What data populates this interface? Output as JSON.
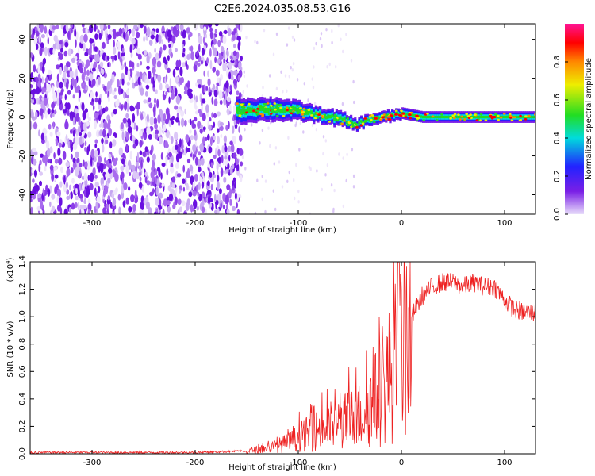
{
  "title": "C2E6.2024.035.08.53.G16",
  "chart_data": [
    {
      "type": "heatmap",
      "xlabel": "Height of straight line (km)",
      "ylabel": "Frequency (Hz)",
      "xlim": [
        -360,
        130
      ],
      "ylim": [
        -50,
        48
      ],
      "x_ticks": [
        -300,
        -200,
        -100,
        0,
        100
      ],
      "y_ticks": [
        -40,
        -20,
        0,
        20,
        40
      ],
      "colorbar": {
        "label": "Normalized spectral amplitude",
        "range": [
          0,
          1
        ],
        "ticks": [
          "0.0",
          "0.2",
          "0.4",
          "0.6",
          "0.8"
        ],
        "colormap": "rainbow",
        "colors": [
          "#e8ddfa",
          "#7a1fe6",
          "#2222ff",
          "#00dcdc",
          "#22dd22",
          "#eeee00",
          "#ff8800",
          "#ff0000",
          "#ff1493"
        ]
      },
      "features": {
        "noise_region_x": [
          -360,
          -155
        ],
        "signal_band": {
          "x": [
            -160,
            -140,
            -120,
            -100,
            -80,
            -60,
            -45,
            -30,
            -15,
            0,
            20,
            50,
            90,
            130
          ],
          "center_hz": [
            3,
            4,
            4,
            3,
            1,
            -1,
            -4,
            -1,
            0,
            2,
            0,
            0,
            0,
            0
          ],
          "half_width_hz": [
            7,
            6,
            6,
            5,
            4,
            4,
            3,
            3,
            3,
            3,
            3,
            3,
            3,
            3
          ]
        }
      }
    },
    {
      "type": "line",
      "xlabel": "Height of straight line (km)",
      "ylabel": "SNR (10 * v/v)",
      "y_multiplier": "(x10",
      "y_multiplier_exp": "4",
      "xlim": [
        -360,
        130
      ],
      "ylim": [
        0,
        1.4
      ],
      "x_ticks": [
        -300,
        -200,
        -100,
        0,
        100
      ],
      "y_ticks": [
        "0.0",
        "0.2",
        "0.4",
        "0.6",
        "0.8",
        "1.0",
        "1.2",
        "1.4"
      ],
      "series": [
        {
          "color": "#ee2222",
          "envelope": {
            "x": [
              -360,
              -200,
              -150,
              -130,
              -110,
              -90,
              -70,
              -50,
              -40,
              -30,
              -20,
              -10,
              0,
              10,
              20,
              30,
              40,
              50,
              60,
              70,
              80,
              90,
              100,
              110,
              120,
              130
            ],
            "y": [
              0.01,
              0.01,
              0.02,
              0.04,
              0.08,
              0.15,
              0.2,
              0.25,
              0.28,
              0.35,
              0.45,
              0.6,
              0.8,
              1.0,
              1.15,
              1.22,
              1.25,
              1.25,
              1.22,
              1.25,
              1.22,
              1.22,
              1.12,
              1.05,
              1.03,
              1.03
            ]
          }
        }
      ]
    }
  ]
}
